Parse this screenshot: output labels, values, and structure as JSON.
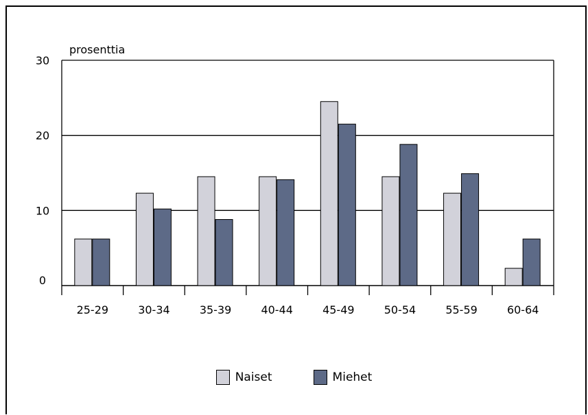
{
  "chart_data": {
    "type": "bar",
    "ylabel": "prosenttia",
    "ylim": [
      0,
      30
    ],
    "yticks": [
      "0",
      "10",
      "20",
      "30"
    ],
    "categories": [
      "25-29",
      "30-34",
      "35-39",
      "40-44",
      "45-49",
      "50-54",
      "55-59",
      "60-64"
    ],
    "series": [
      {
        "name": "Naiset",
        "color": "#d2d2da",
        "values": [
          6.2,
          12.3,
          14.5,
          14.5,
          24.5,
          14.5,
          12.3,
          2.3
        ]
      },
      {
        "name": "Miehet",
        "color": "#5d6a87",
        "values": [
          6.2,
          10.2,
          8.8,
          14.1,
          21.5,
          18.8,
          14.9,
          6.2
        ]
      }
    ],
    "grid": true,
    "legend_position": "bottom-center"
  }
}
